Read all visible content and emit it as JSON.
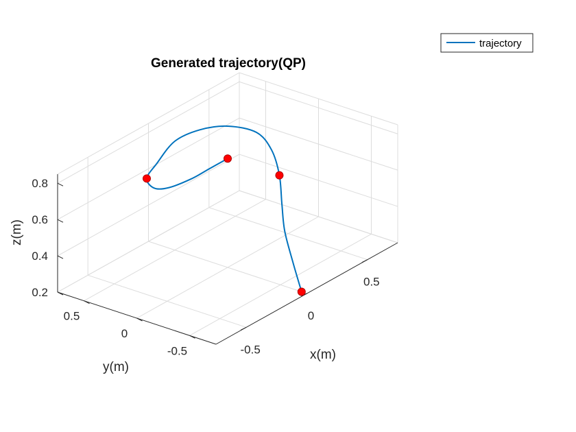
{
  "chart_data": {
    "type": "line3d",
    "title": "Generated trajectory(QP)",
    "xlabel": "x(m)",
    "ylabel": "y(m)",
    "zlabel": "z(m)",
    "xlim": [
      -0.75,
      0.75
    ],
    "ylim": [
      -0.75,
      0.75
    ],
    "zlim": [
      0.2,
      0.85
    ],
    "x_ticks": [
      {
        "value": -0.5,
        "label": "-0.5"
      },
      {
        "value": 0,
        "label": "0"
      },
      {
        "value": 0.5,
        "label": "0.5"
      }
    ],
    "y_ticks": [
      {
        "value": -0.5,
        "label": "-0.5"
      },
      {
        "value": 0,
        "label": "0"
      },
      {
        "value": 0.5,
        "label": "0.5"
      }
    ],
    "z_ticks": [
      {
        "value": 0.2,
        "label": "0.2"
      },
      {
        "value": 0.4,
        "label": "0.4"
      },
      {
        "value": 0.6,
        "label": "0.6"
      },
      {
        "value": 0.8,
        "label": "0.8"
      }
    ],
    "grid": true,
    "legend": {
      "position": "top-right",
      "entries": [
        "trajectory"
      ]
    },
    "series": [
      {
        "name": "trajectory",
        "color": "#0072BD",
        "points": [
          {
            "x": 0.0,
            "y": -0.7,
            "z": 0.2
          },
          {
            "x": 0.06,
            "y": -0.55,
            "z": 0.31
          },
          {
            "x": 0.14,
            "y": -0.38,
            "z": 0.42
          },
          {
            "x": 0.23,
            "y": -0.25,
            "z": 0.51
          },
          {
            "x": 0.34,
            "y": -0.1,
            "z": 0.6
          },
          {
            "x": 0.45,
            "y": 0.1,
            "z": 0.66
          },
          {
            "x": 0.5,
            "y": 0.3,
            "z": 0.7
          },
          {
            "x": 0.42,
            "y": 0.48,
            "z": 0.73
          },
          {
            "x": 0.25,
            "y": 0.55,
            "z": 0.76
          },
          {
            "x": 0.0,
            "y": 0.5,
            "z": 0.8
          },
          {
            "x": -0.28,
            "y": 0.35,
            "z": 0.81
          },
          {
            "x": -0.45,
            "y": 0.25,
            "z": 0.81
          },
          {
            "x": -0.5,
            "y": 0.12,
            "z": 0.8
          },
          {
            "x": -0.45,
            "y": 0.04,
            "z": 0.8
          },
          {
            "x": -0.3,
            "y": 0.0,
            "z": 0.8
          },
          {
            "x": -0.15,
            "y": 0.0,
            "z": 0.8
          },
          {
            "x": 0.0,
            "y": 0.0,
            "z": 0.8
          }
        ]
      }
    ],
    "waypoints": {
      "color": "#FF0000",
      "points": [
        {
          "x": 0.0,
          "y": -0.7,
          "z": 0.2
        },
        {
          "x": 0.34,
          "y": -0.1,
          "z": 0.6
        },
        {
          "x": -0.45,
          "y": 0.25,
          "z": 0.81
        },
        {
          "x": 0.0,
          "y": 0.0,
          "z": 0.8
        }
      ]
    }
  }
}
